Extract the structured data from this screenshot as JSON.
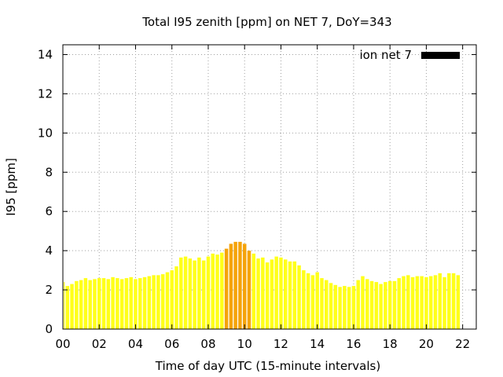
{
  "chart_data": {
    "type": "bar",
    "title": "Total I95 zenith [ppm] on NET 7, DoY=343",
    "xlabel": "Time of day UTC (15-minute intervals)",
    "ylabel": "I95 [ppm]",
    "xlim": [
      0,
      22.75
    ],
    "ylim": [
      0,
      14.5
    ],
    "x_ticks": [
      0,
      2,
      4,
      6,
      8,
      10,
      12,
      14,
      16,
      18,
      20,
      22
    ],
    "x_tick_labels": [
      "00",
      "02",
      "04",
      "06",
      "08",
      "10",
      "12",
      "14",
      "16",
      "18",
      "20",
      "22"
    ],
    "y_ticks": [
      0,
      2,
      4,
      6,
      8,
      10,
      12,
      14
    ],
    "y_tick_labels": [
      "0",
      "2",
      "4",
      "6",
      "8",
      "10",
      "12",
      "14"
    ],
    "grid": true,
    "legend_position": "top-right",
    "interval_hours": 0.25,
    "highlight_threshold": 4.0,
    "colors": {
      "normal": "#ffff1a",
      "high": "#f5a30a",
      "legend": "#000000"
    },
    "series": [
      {
        "name": "ion net 7",
        "values": [
          2.4,
          2.2,
          2.3,
          2.45,
          2.5,
          2.6,
          2.5,
          2.55,
          2.6,
          2.6,
          2.55,
          2.65,
          2.6,
          2.55,
          2.6,
          2.65,
          2.55,
          2.6,
          2.65,
          2.7,
          2.75,
          2.75,
          2.8,
          2.9,
          3.0,
          3.2,
          3.65,
          3.7,
          3.6,
          3.5,
          3.65,
          3.5,
          3.7,
          3.85,
          3.8,
          3.9,
          4.1,
          4.35,
          4.45,
          4.45,
          4.35,
          4.0,
          3.85,
          3.6,
          3.65,
          3.4,
          3.55,
          3.7,
          3.65,
          3.55,
          3.45,
          3.45,
          3.25,
          3.0,
          2.85,
          2.75,
          2.9,
          2.6,
          2.5,
          2.35,
          2.25,
          2.15,
          2.2,
          2.15,
          2.2,
          2.5,
          2.7,
          2.55,
          2.45,
          2.4,
          2.3,
          2.4,
          2.45,
          2.45,
          2.6,
          2.7,
          2.75,
          2.65,
          2.7,
          2.7,
          2.65,
          2.7,
          2.75,
          2.85,
          2.65,
          2.85,
          2.85,
          2.75
        ]
      }
    ]
  }
}
